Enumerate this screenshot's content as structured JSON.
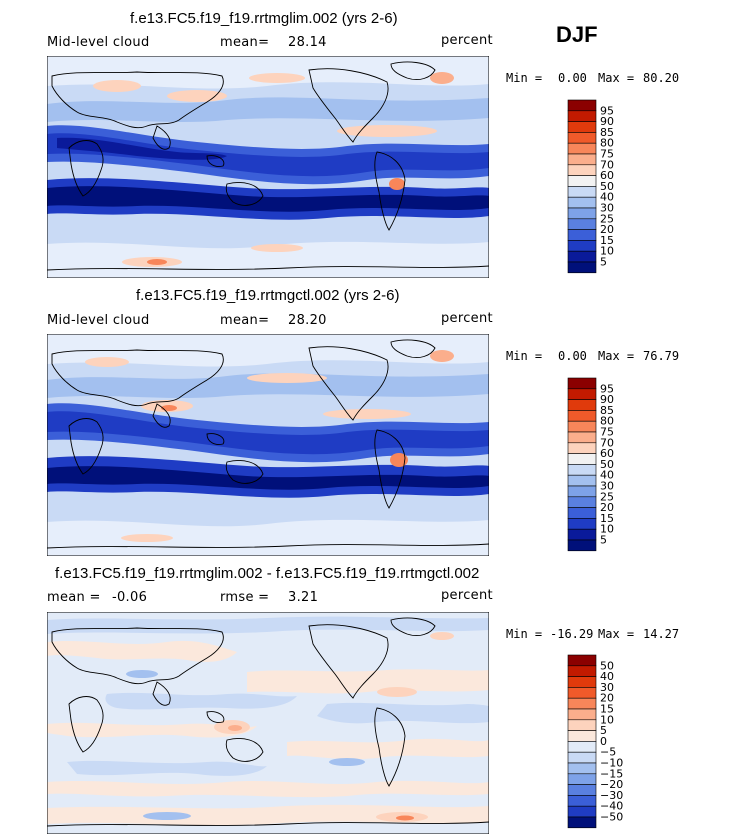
{
  "season": "DJF",
  "panels": [
    {
      "title": "f.e13.FC5.f19_f19.rrtmglim.002 (yrs 2-6)",
      "left_label": "Mid-level cloud",
      "mean_label": "mean=",
      "mean_value": "28.14",
      "units": "percent",
      "min_label": "Min =",
      "min_value": "0.00",
      "max_label": "Max =",
      "max_value": "80.20"
    },
    {
      "title": "f.e13.FC5.f19_f19.rrtmgctl.002 (yrs 2-6)",
      "left_label": "Mid-level cloud",
      "mean_label": "mean=",
      "mean_value": "28.20",
      "units": "percent",
      "min_label": "Min =",
      "min_value": "0.00",
      "max_label": "Max =",
      "max_value": "76.79"
    },
    {
      "title": "f.e13.FC5.f19_f19.rrtmglim.002 - f.e13.FC5.f19_f19.rrtmgctl.002",
      "mean_label": "mean =",
      "mean_value": "-0.06",
      "rmse_label": "rmse =",
      "rmse_value": "3.21",
      "units": "percent",
      "min_label": "Min =",
      "min_value": "-16.29",
      "max_label": "Max =",
      "max_value": "14.27"
    }
  ],
  "chart_data": [
    {
      "type": "heatmap",
      "title": "f.e13.FC5.f19_f19.rrtmglim.002 (yrs 2-6)",
      "variable": "Mid-level cloud",
      "units": "percent",
      "mean": 28.14,
      "min": 0.0,
      "max": 80.2,
      "colorbar": {
        "levels": [
          "95",
          "90",
          "85",
          "80",
          "75",
          "70",
          "60",
          "50",
          "40",
          "30",
          "25",
          "20",
          "15",
          "10",
          "5"
        ],
        "colors": [
          "#8b0000",
          "#c21a00",
          "#e03a0c",
          "#f05a2a",
          "#f8865a",
          "#fbae8c",
          "#fdd3bd",
          "#f2f2f2",
          "#c9daf5",
          "#a3c0ef",
          "#7ea2e8",
          "#5a80e0",
          "#3b5fd8",
          "#1f3cc4",
          "#0a1a9a",
          "#00107a"
        ]
      }
    },
    {
      "type": "heatmap",
      "title": "f.e13.FC5.f19_f19.rrtmgctl.002 (yrs 2-6)",
      "variable": "Mid-level cloud",
      "units": "percent",
      "mean": 28.2,
      "min": 0.0,
      "max": 76.79,
      "colorbar": {
        "levels": [
          "95",
          "90",
          "85",
          "80",
          "75",
          "70",
          "60",
          "50",
          "40",
          "30",
          "25",
          "20",
          "15",
          "10",
          "5"
        ],
        "colors": [
          "#8b0000",
          "#c21a00",
          "#e03a0c",
          "#f05a2a",
          "#f8865a",
          "#fbae8c",
          "#fdd3bd",
          "#f2f2f2",
          "#c9daf5",
          "#a3c0ef",
          "#7ea2e8",
          "#5a80e0",
          "#3b5fd8",
          "#1f3cc4",
          "#0a1a9a",
          "#00107a"
        ]
      }
    },
    {
      "type": "heatmap",
      "title": "f.e13.FC5.f19_f19.rrtmglim.002 - f.e13.FC5.f19_f19.rrtmgctl.002",
      "units": "percent",
      "mean": -0.06,
      "rmse": 3.21,
      "min": -16.29,
      "max": 14.27,
      "colorbar": {
        "levels": [
          "50",
          "40",
          "30",
          "20",
          "15",
          "10",
          "5",
          "0",
          "-5",
          "-10",
          "-15",
          "-20",
          "-30",
          "-40",
          "-50"
        ],
        "colors": [
          "#8b0000",
          "#c21a00",
          "#e03a0c",
          "#f05a2a",
          "#f8865a",
          "#fbae8c",
          "#fdd3bd",
          "#fbe8dc",
          "#e2ebf8",
          "#c9daf5",
          "#a3c0ef",
          "#7ea2e8",
          "#5a80e0",
          "#3b5fd8",
          "#1f3cc4",
          "#00107a"
        ]
      }
    }
  ]
}
